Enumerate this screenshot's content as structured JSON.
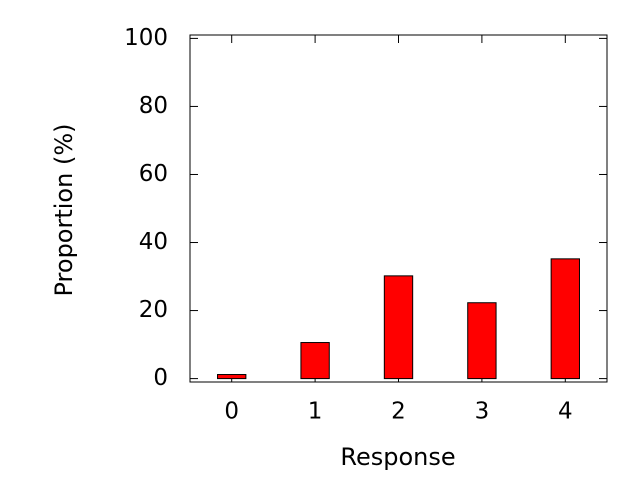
{
  "chart_data": {
    "type": "bar",
    "x_label": "Response",
    "y_label": "Proportion (%)",
    "categories": [
      "0",
      "1",
      "2",
      "3",
      "4"
    ],
    "values": [
      1.2,
      10.6,
      30.2,
      22.3,
      35.2
    ],
    "color": "#ff0000",
    "ylim": [
      -1,
      101
    ],
    "yticks": [
      0,
      20,
      40,
      60,
      80,
      100
    ]
  }
}
